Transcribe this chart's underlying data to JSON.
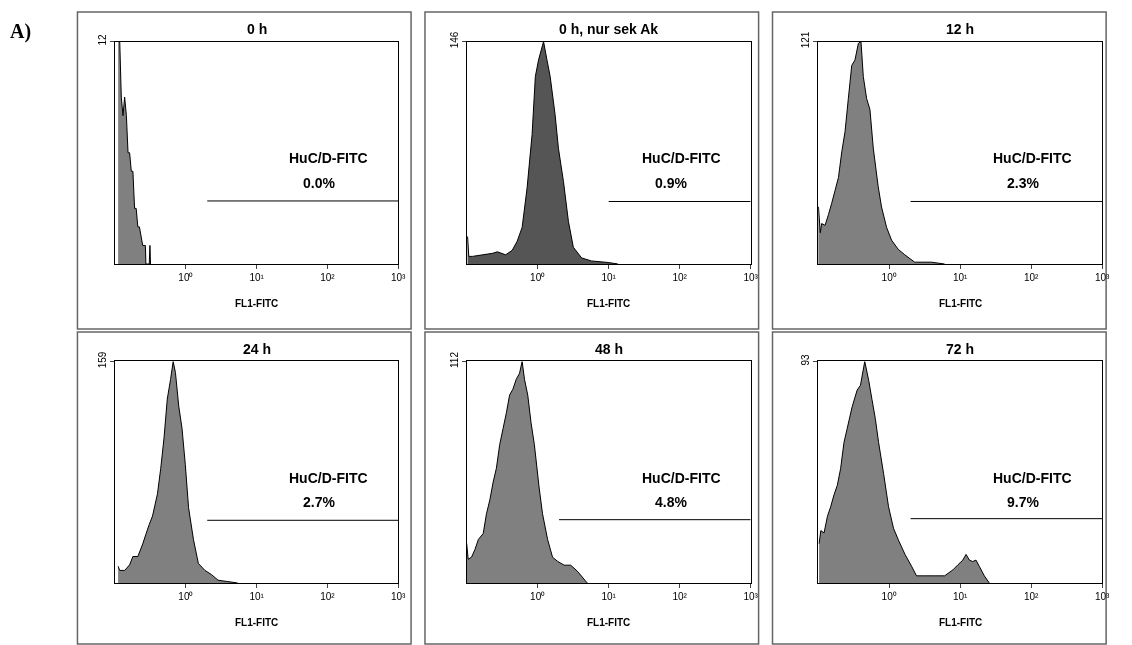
{
  "chart_data": [
    {
      "type": "area",
      "title": "0 h",
      "xlabel": "FL1-FITC",
      "log": "x",
      "xlim": [
        0.1,
        1000
      ],
      "xticks": [
        {
          "value": 1,
          "label": "10⁰"
        },
        {
          "value": 10,
          "label": "10¹"
        },
        {
          "value": 100,
          "label": "10²"
        },
        {
          "value": 1000,
          "label": "10³"
        }
      ],
      "ylim": [
        0,
        12
      ],
      "yticks": [
        12
      ],
      "series": [
        {
          "color": "#808080",
          "x": [
            0.11,
            0.116,
            0.122,
            0.129,
            0.136,
            0.144,
            0.152,
            0.16,
            0.169,
            0.178,
            0.188,
            0.198,
            0.209,
            0.22,
            0.245,
            0.267,
            0.272,
            0.303,
            0.31,
            0.316
          ],
          "values": [
            12,
            12,
            9,
            8,
            9,
            8,
            6,
            6,
            5,
            5,
            3,
            3,
            2,
            2,
            1,
            1,
            0,
            0,
            1,
            0
          ]
        },
        {
          "type": "line",
          "color": "#000000",
          "x": [
            2,
            1000
          ],
          "values": [
            3.4,
            3.4
          ]
        }
      ],
      "annotations": [
        "A)",
        "HuC/D-FITC",
        "0.0%"
      ]
    },
    {
      "type": "area",
      "title": "0 h, nur sek Ak",
      "xlabel": "FL1-FITC",
      "log": "x",
      "xlim": [
        0.1,
        1000
      ],
      "xticks": [
        {
          "value": 1,
          "label": "10⁰"
        },
        {
          "value": 10,
          "label": "10¹"
        },
        {
          "value": 100,
          "label": "10²"
        },
        {
          "value": 1000,
          "label": "10³"
        }
      ],
      "ylim": [
        0,
        146
      ],
      "yticks": [
        146
      ],
      "series": [
        {
          "color": "#555555",
          "x": [
            0.103,
            0.107,
            0.121,
            0.167,
            0.231,
            0.271,
            0.354,
            0.438,
            0.515,
            0.604,
            0.71,
            0.834,
            0.927,
            1.03,
            1.21,
            1.35,
            1.5,
            1.76,
            1.96,
            2.31,
            2.71,
            3.18,
            4.16,
            5.73,
            9.8,
            13.5
          ],
          "values": [
            18,
            5,
            5,
            6,
            7,
            8,
            6,
            9,
            15,
            24,
            50,
            85,
            123,
            134,
            146,
            134,
            123,
            98,
            76,
            54,
            28,
            11,
            4,
            2,
            1,
            0
          ]
        },
        {
          "type": "line",
          "color": "#000000",
          "x": [
            10,
            1000
          ],
          "values": [
            41,
            41
          ]
        }
      ],
      "annotations": [
        "HuC/D-FITC",
        "0.9%"
      ]
    },
    {
      "type": "area",
      "title": "12 h",
      "xlabel": "FL1-FITC",
      "log": "x",
      "xlim": [
        0.1,
        1000
      ],
      "xticks": [
        {
          "value": 1,
          "label": "10⁰"
        },
        {
          "value": 10,
          "label": "10¹"
        },
        {
          "value": 100,
          "label": "10²"
        },
        {
          "value": 1000,
          "label": "10³"
        }
      ],
      "ylim": [
        0,
        121
      ],
      "yticks": [
        121
      ],
      "series": [
        {
          "color": "#808080",
          "x": [
            0.1,
            0.101,
            0.107,
            0.112,
            0.125,
            0.14,
            0.155,
            0.173,
            0.193,
            0.215,
            0.239,
            0.266,
            0.297,
            0.33,
            0.368,
            0.401,
            0.432,
            0.481,
            0.536,
            0.597,
            0.701,
            0.781,
            0.918,
            1.08,
            1.34,
            1.66,
            2.29,
            3.92,
            6.03
          ],
          "values": [
            31,
            31,
            17,
            22,
            21,
            27,
            33,
            40,
            47,
            61,
            72,
            90,
            108,
            111,
            120,
            121,
            102,
            90,
            84,
            63,
            42,
            31,
            20,
            13,
            8,
            5,
            1,
            1,
            0
          ]
        },
        {
          "type": "line",
          "color": "#000000",
          "x": [
            2,
            1000
          ],
          "values": [
            34,
            34
          ]
        }
      ],
      "annotations": [
        "HuC/D-FITC",
        "2.3%"
      ]
    },
    {
      "type": "area",
      "title": "24 h",
      "xlabel": "FL1-FITC",
      "log": "x",
      "xlim": [
        0.1,
        1000
      ],
      "xticks": [
        {
          "value": 1,
          "label": "10⁰"
        },
        {
          "value": 10,
          "label": "10¹"
        },
        {
          "value": 100,
          "label": "10²"
        },
        {
          "value": 1000,
          "label": "10³"
        }
      ],
      "ylim": [
        0,
        159
      ],
      "yticks": [
        159
      ],
      "series": [
        {
          "color": "#808080",
          "x": [
            0.11,
            0.116,
            0.136,
            0.16,
            0.178,
            0.209,
            0.245,
            0.272,
            0.303,
            0.337,
            0.396,
            0.44,
            0.49,
            0.545,
            0.606,
            0.66,
            0.711,
            0.791,
            0.88,
            0.98,
            1.09,
            1.28,
            1.5,
            1.86,
            2.3,
            2.84,
            3.91,
            5.38
          ],
          "values": [
            12,
            9,
            9,
            13,
            19,
            19,
            28,
            35,
            42,
            48,
            64,
            82,
            104,
            132,
            146,
            159,
            151,
            127,
            111,
            85,
            54,
            31,
            14,
            9,
            6,
            2,
            1,
            0
          ]
        },
        {
          "type": "line",
          "color": "#000000",
          "x": [
            2,
            1000
          ],
          "values": [
            45,
            45
          ]
        }
      ],
      "annotations": [
        "HuC/D-FITC",
        "2.7%"
      ]
    },
    {
      "type": "area",
      "title": "48 h",
      "xlabel": "FL1-FITC",
      "log": "x",
      "xlim": [
        0.1,
        1000
      ],
      "xticks": [
        {
          "value": 1,
          "label": "10⁰"
        },
        {
          "value": 10,
          "label": "10¹"
        },
        {
          "value": 100,
          "label": "10²"
        },
        {
          "value": 1000,
          "label": "10³"
        }
      ],
      "ylim": [
        0,
        112
      ],
      "yticks": [
        112
      ],
      "series": [
        {
          "color": "#808080",
          "x": [
            0.1,
            0.105,
            0.117,
            0.131,
            0.146,
            0.171,
            0.19,
            0.212,
            0.236,
            0.262,
            0.292,
            0.325,
            0.362,
            0.402,
            0.448,
            0.499,
            0.555,
            0.604,
            0.652,
            0.725,
            0.807,
            0.898,
            1.05,
            1.17,
            1.38,
            1.62,
            1.9,
            2.36,
            2.92,
            3.61,
            4.25,
            4.72,
            4.99
          ],
          "values": [
            20,
            12,
            13,
            17,
            22,
            25,
            35,
            42,
            51,
            58,
            70,
            78,
            86,
            95,
            98,
            103,
            106,
            112,
            103,
            95,
            81,
            70,
            48,
            35,
            22,
            13,
            11,
            9,
            9,
            6,
            3,
            1,
            0
          ]
        },
        {
          "type": "line",
          "color": "#000000",
          "x": [
            2,
            1000
          ],
          "values": [
            32,
            32
          ]
        }
      ],
      "annotations": [
        "HuC/D-FITC",
        "4.8%"
      ]
    },
    {
      "type": "area",
      "title": "72 h",
      "xlabel": "FL1-FITC",
      "log": "x",
      "xlim": [
        0.1,
        1000
      ],
      "xticks": [
        {
          "value": 1,
          "label": "10⁰"
        },
        {
          "value": 10,
          "label": "10¹"
        },
        {
          "value": 100,
          "label": "10²"
        },
        {
          "value": 1000,
          "label": "10³"
        }
      ],
      "ylim": [
        0,
        93
      ],
      "yticks": [
        93
      ],
      "series": [
        {
          "color": "#808080",
          "x": [
            0.103,
            0.109,
            0.121,
            0.135,
            0.15,
            0.167,
            0.186,
            0.207,
            0.231,
            0.257,
            0.301,
            0.354,
            0.394,
            0.453,
            0.515,
            0.573,
            0.638,
            0.71,
            0.834,
            0.98,
            1.15,
            1.35,
            1.67,
            2.07,
            2.43,
            3.18,
            4.39,
            6.04,
            7.9,
            9.27,
            10.9,
            12.1,
            13.5,
            15.0,
            16.7,
            18.6,
            21.9,
            25.7
          ],
          "values": [
            16.5,
            22,
            21,
            28,
            32,
            37,
            41,
            48,
            59,
            65,
            74,
            81,
            83,
            93,
            85,
            77,
            69,
            59,
            46,
            32,
            23,
            18,
            12,
            7,
            3,
            3,
            3,
            3,
            5.5,
            7.6,
            9.6,
            12,
            9.6,
            9,
            9.6,
            7,
            3,
            0
          ]
        },
        {
          "type": "line",
          "color": "#000000",
          "x": [
            2,
            1000
          ],
          "values": [
            27,
            27
          ]
        }
      ],
      "annotations": [
        "HuC/D-FITC",
        "9.7%"
      ]
    }
  ]
}
